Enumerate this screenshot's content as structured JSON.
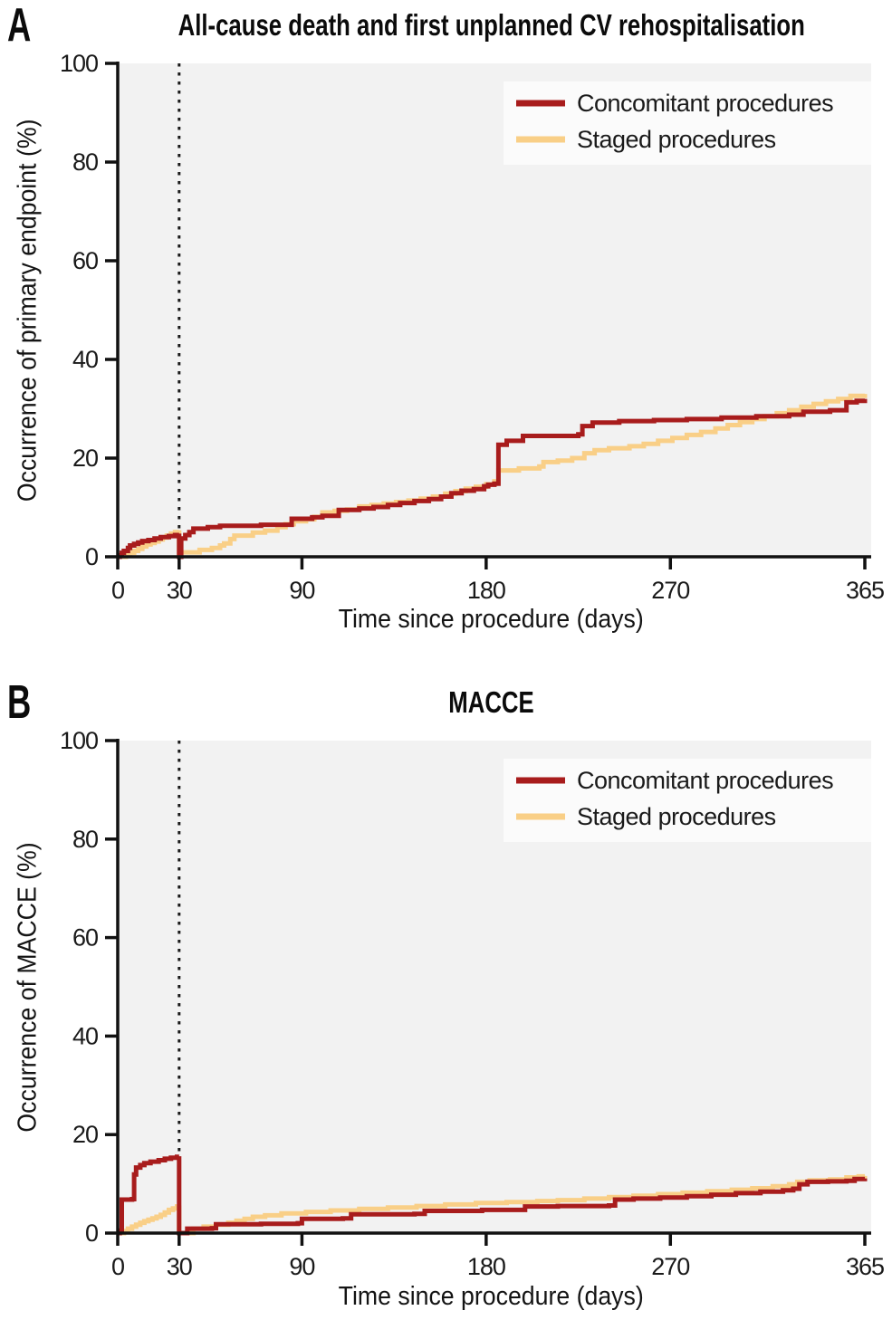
{
  "figure": {
    "panels": [
      "A",
      "B"
    ]
  },
  "colors": {
    "concomitant": "#A81C1C",
    "staged": "#F9CF87",
    "plot_bg": "#F2F2F2",
    "legend_bg": "#FBFBFB",
    "axis": "#111111",
    "tick_text": "#1A1A1A",
    "vline": "#1A1A1A"
  },
  "chart_data": [
    {
      "panel_label": "A",
      "type": "line",
      "step": true,
      "title": "All-cause death and first unplanned CV rehospitalisation",
      "xlabel": "Time since procedure (days)",
      "ylabel": "Occurrence of primary endpoint (%)",
      "xlim": [
        0,
        365
      ],
      "ylim": [
        0,
        100
      ],
      "xticks": [
        0,
        30,
        90,
        180,
        270,
        365
      ],
      "yticks": [
        0,
        20,
        40,
        60,
        80,
        100
      ],
      "grid": false,
      "vline_x": 30,
      "legend_position": "top-right",
      "series": [
        {
          "name": "Concomitant procedures",
          "color_key": "concomitant",
          "points": [
            [
              0,
              0
            ],
            [
              1,
              0.3
            ],
            [
              2,
              0.8
            ],
            [
              3,
              1.2
            ],
            [
              5,
              1.8
            ],
            [
              6,
              2.3
            ],
            [
              8,
              2.6
            ],
            [
              10,
              2.9
            ],
            [
              12,
              3.2
            ],
            [
              15,
              3.4
            ],
            [
              18,
              3.7
            ],
            [
              21,
              4.0
            ],
            [
              25,
              4.2
            ],
            [
              28,
              4.4
            ],
            [
              30,
              4.7
            ],
            [
              30,
              0
            ],
            [
              31,
              3.7
            ],
            [
              33,
              4.4
            ],
            [
              35,
              5.0
            ],
            [
              37,
              5.7
            ],
            [
              44,
              6.0
            ],
            [
              50,
              6.3
            ],
            [
              70,
              6.5
            ],
            [
              85,
              7.7
            ],
            [
              95,
              8.0
            ],
            [
              100,
              8.3
            ],
            [
              108,
              9.5
            ],
            [
              118,
              9.8
            ],
            [
              125,
              10.1
            ],
            [
              132,
              10.5
            ],
            [
              138,
              10.9
            ],
            [
              145,
              11.3
            ],
            [
              152,
              11.7
            ],
            [
              158,
              12.2
            ],
            [
              163,
              12.9
            ],
            [
              168,
              13.4
            ],
            [
              174,
              13.7
            ],
            [
              179,
              14.3
            ],
            [
              181,
              14.6
            ],
            [
              184,
              14.8
            ],
            [
              186,
              22.7
            ],
            [
              190,
              23.5
            ],
            [
              198,
              24.5
            ],
            [
              225,
              24.8
            ],
            [
              227,
              26.5
            ],
            [
              232,
              27.2
            ],
            [
              245,
              27.5
            ],
            [
              262,
              27.7
            ],
            [
              278,
              27.9
            ],
            [
              295,
              28.2
            ],
            [
              312,
              28.5
            ],
            [
              328,
              28.8
            ],
            [
              335,
              29.4
            ],
            [
              348,
              29.7
            ],
            [
              356,
              31.3
            ],
            [
              361,
              31.6
            ],
            [
              365,
              32.0
            ]
          ]
        },
        {
          "name": "Staged procedures",
          "color_key": "staged",
          "points": [
            [
              0,
              0
            ],
            [
              4,
              0.4
            ],
            [
              6,
              0.8
            ],
            [
              8,
              1.2
            ],
            [
              10,
              1.6
            ],
            [
              12,
              2.1
            ],
            [
              14,
              2.5
            ],
            [
              16,
              2.8
            ],
            [
              18,
              3.1
            ],
            [
              20,
              3.5
            ],
            [
              22,
              3.9
            ],
            [
              24,
              4.3
            ],
            [
              26,
              4.7
            ],
            [
              28,
              5.0
            ],
            [
              30,
              5.4
            ],
            [
              30,
              0
            ],
            [
              31,
              0.9
            ],
            [
              40,
              1.4
            ],
            [
              46,
              1.8
            ],
            [
              50,
              2.3
            ],
            [
              52,
              2.7
            ],
            [
              55,
              3.6
            ],
            [
              57,
              4.3
            ],
            [
              66,
              4.9
            ],
            [
              72,
              5.3
            ],
            [
              78,
              6.0
            ],
            [
              82,
              6.6
            ],
            [
              86,
              7.2
            ],
            [
              92,
              7.6
            ],
            [
              96,
              8.1
            ],
            [
              100,
              9.0
            ],
            [
              106,
              9.3
            ],
            [
              112,
              9.6
            ],
            [
              118,
              10.2
            ],
            [
              124,
              10.5
            ],
            [
              130,
              10.8
            ],
            [
              136,
              11.1
            ],
            [
              142,
              11.4
            ],
            [
              148,
              11.8
            ],
            [
              154,
              12.2
            ],
            [
              160,
              12.8
            ],
            [
              165,
              13.3
            ],
            [
              170,
              13.8
            ],
            [
              175,
              14.2
            ],
            [
              180,
              14.7
            ],
            [
              184,
              15.3
            ],
            [
              186,
              17.5
            ],
            [
              196,
              17.9
            ],
            [
              206,
              18.3
            ],
            [
              208,
              19.2
            ],
            [
              215,
              19.5
            ],
            [
              222,
              20.0
            ],
            [
              228,
              21.0
            ],
            [
              233,
              21.6
            ],
            [
              240,
              22.0
            ],
            [
              250,
              22.4
            ],
            [
              257,
              22.9
            ],
            [
              264,
              23.5
            ],
            [
              271,
              24.1
            ],
            [
              278,
              24.7
            ],
            [
              285,
              25.3
            ],
            [
              292,
              26.0
            ],
            [
              298,
              26.7
            ],
            [
              304,
              27.3
            ],
            [
              310,
              27.9
            ],
            [
              316,
              28.5
            ],
            [
              322,
              29.1
            ],
            [
              328,
              29.7
            ],
            [
              334,
              30.4
            ],
            [
              340,
              31.0
            ],
            [
              346,
              31.5
            ],
            [
              352,
              32.0
            ],
            [
              358,
              32.6
            ],
            [
              365,
              33.0
            ]
          ]
        }
      ]
    },
    {
      "panel_label": "B",
      "type": "line",
      "step": true,
      "title": "MACCE",
      "xlabel": "Time since procedure (days)",
      "ylabel": "Occurrence of MACCE (%)",
      "xlim": [
        0,
        365
      ],
      "ylim": [
        0,
        100
      ],
      "xticks": [
        0,
        30,
        90,
        180,
        270,
        365
      ],
      "yticks": [
        0,
        20,
        40,
        60,
        80,
        100
      ],
      "grid": false,
      "vline_x": 30,
      "legend_position": "top-right",
      "series": [
        {
          "name": "Concomitant procedures",
          "color_key": "concomitant",
          "points": [
            [
              0,
              0
            ],
            [
              1,
              0.5
            ],
            [
              2,
              6.8
            ],
            [
              7,
              6.9
            ],
            [
              8,
              11.9
            ],
            [
              9,
              13.3
            ],
            [
              11,
              13.8
            ],
            [
              13,
              14.2
            ],
            [
              16,
              14.5
            ],
            [
              20,
              14.8
            ],
            [
              23,
              15.1
            ],
            [
              26,
              15.3
            ],
            [
              29,
              15.5
            ],
            [
              30,
              15.6
            ],
            [
              30,
              0
            ],
            [
              33,
              0
            ],
            [
              34,
              0.9
            ],
            [
              46,
              1.0
            ],
            [
              48,
              1.8
            ],
            [
              70,
              1.9
            ],
            [
              88,
              2.0
            ],
            [
              90,
              2.9
            ],
            [
              110,
              3.0
            ],
            [
              114,
              3.8
            ],
            [
              145,
              3.9
            ],
            [
              150,
              4.5
            ],
            [
              178,
              4.7
            ],
            [
              199,
              5.4
            ],
            [
              215,
              5.5
            ],
            [
              240,
              5.6
            ],
            [
              243,
              6.8
            ],
            [
              252,
              7.0
            ],
            [
              265,
              7.2
            ],
            [
              278,
              7.5
            ],
            [
              290,
              7.8
            ],
            [
              302,
              8.1
            ],
            [
              314,
              8.4
            ],
            [
              325,
              8.7
            ],
            [
              330,
              9.0
            ],
            [
              333,
              9.9
            ],
            [
              337,
              10.4
            ],
            [
              347,
              10.5
            ],
            [
              356,
              10.6
            ],
            [
              360,
              11.0
            ],
            [
              365,
              11.1
            ]
          ]
        },
        {
          "name": "Staged procedures",
          "color_key": "staged",
          "points": [
            [
              0,
              0
            ],
            [
              3,
              0.4
            ],
            [
              5,
              0.9
            ],
            [
              7,
              1.3
            ],
            [
              9,
              1.7
            ],
            [
              11,
              2.1
            ],
            [
              13,
              2.4
            ],
            [
              15,
              2.7
            ],
            [
              17,
              3.0
            ],
            [
              19,
              3.3
            ],
            [
              21,
              3.7
            ],
            [
              23,
              4.2
            ],
            [
              25,
              4.7
            ],
            [
              27,
              5.0
            ],
            [
              29,
              5.4
            ],
            [
              30,
              5.6
            ],
            [
              30,
              0
            ],
            [
              36,
              0
            ],
            [
              37,
              0.9
            ],
            [
              42,
              1.3
            ],
            [
              48,
              1.7
            ],
            [
              54,
              2.1
            ],
            [
              58,
              2.5
            ],
            [
              62,
              2.9
            ],
            [
              66,
              3.3
            ],
            [
              72,
              3.6
            ],
            [
              80,
              4.0
            ],
            [
              92,
              4.3
            ],
            [
              104,
              4.6
            ],
            [
              118,
              4.9
            ],
            [
              132,
              5.2
            ],
            [
              146,
              5.5
            ],
            [
              160,
              5.8
            ],
            [
              175,
              6.1
            ],
            [
              190,
              6.3
            ],
            [
              205,
              6.5
            ],
            [
              215,
              6.7
            ],
            [
              228,
              7.0
            ],
            [
              240,
              7.3
            ],
            [
              252,
              7.6
            ],
            [
              264,
              7.9
            ],
            [
              276,
              8.2
            ],
            [
              288,
              8.5
            ],
            [
              300,
              8.8
            ],
            [
              310,
              9.1
            ],
            [
              320,
              9.5
            ],
            [
              328,
              9.9
            ],
            [
              332,
              10.4
            ],
            [
              338,
              10.7
            ],
            [
              348,
              10.9
            ],
            [
              356,
              11.3
            ],
            [
              362,
              11.5
            ],
            [
              365,
              11.6
            ]
          ]
        }
      ]
    }
  ]
}
